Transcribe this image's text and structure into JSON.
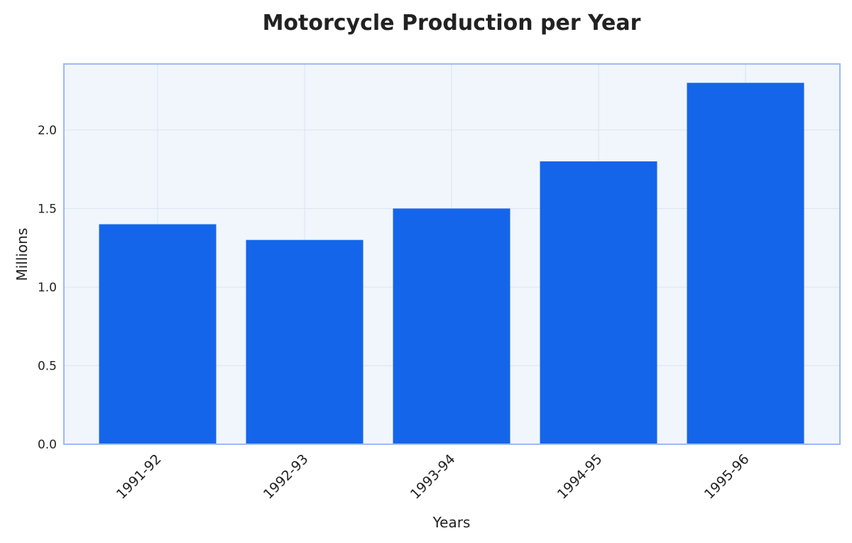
{
  "chart_data": {
    "type": "bar",
    "title": "Motorcycle Production per Year",
    "xlabel": "Years",
    "ylabel": "Millions",
    "categories": [
      "1991-92",
      "1992-93",
      "1993-94",
      "1994-95",
      "1995-96"
    ],
    "values": [
      1.4,
      1.3,
      1.5,
      1.8,
      2.3
    ],
    "yticks": [
      "0.0",
      "0.5",
      "1.0",
      "1.5",
      "2.0"
    ],
    "ylim": [
      0,
      2.42
    ],
    "grid": true,
    "colors": {
      "bar": "#1565ea",
      "plot_background": "#f1f6fd",
      "plot_border": "#9bbcef",
      "grid": "#dde7f5"
    }
  }
}
